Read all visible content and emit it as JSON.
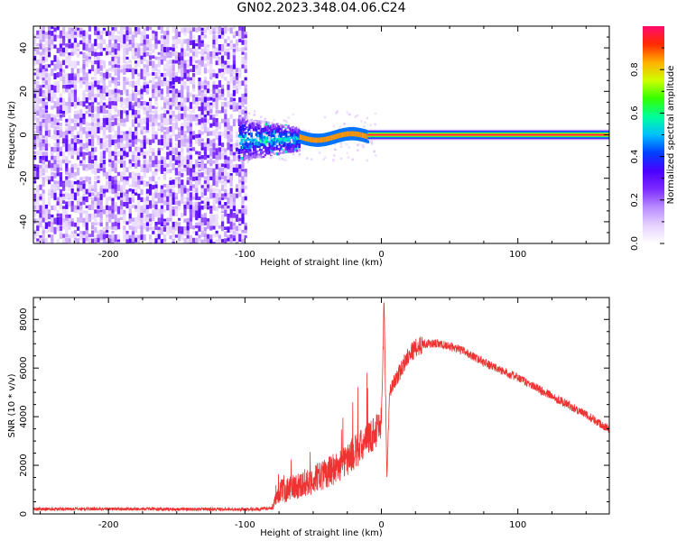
{
  "figure": {
    "title": "GN02.2023.348.04.06.C24"
  },
  "chart_data": [
    {
      "type": "heatmap",
      "panel": "top",
      "xlabel": "Height of straight line (km)",
      "ylabel": "Frequency (Hz)",
      "xlim": [
        -255,
        167
      ],
      "ylim": [
        -50,
        50
      ],
      "x_ticks": [
        -200,
        -100,
        0,
        100
      ],
      "y_ticks": [
        -40,
        -20,
        0,
        20,
        40
      ],
      "colorbar": {
        "label": "Normalized spectral amplitude",
        "range": [
          0,
          1
        ],
        "ticks": [
          0.0,
          0.2,
          0.4,
          0.6,
          0.8
        ],
        "colormap": [
          "#ffffff",
          "#e6d2ff",
          "#b98cff",
          "#7d2bff",
          "#4a00ff",
          "#0040ff",
          "#00bfff",
          "#00ff9a",
          "#33ff00",
          "#ccff00",
          "#ffb000",
          "#ff2a00",
          "#ff0a6e"
        ]
      },
      "regions": [
        {
          "x_range": [
            -255,
            -100
          ],
          "freq_range": [
            -50,
            50
          ],
          "amplitude": 0.15,
          "description_type": "broadband noise"
        },
        {
          "x_range": [
            -105,
            -60
          ],
          "freq_center": -2,
          "freq_spread": 10,
          "amplitude": 0.3
        },
        {
          "x_range": [
            -60,
            -10
          ],
          "freq_center": -1,
          "freq_spread": 3,
          "amplitude": 0.8
        },
        {
          "x_range": [
            -10,
            167
          ],
          "freq_center": 0,
          "freq_spread": 1,
          "amplitude": 1.0
        }
      ]
    },
    {
      "type": "line",
      "panel": "bottom",
      "xlabel": "Height of straight line (km)",
      "ylabel": "SNR (10 * v/v)",
      "xlim": [
        -255,
        167
      ],
      "ylim": [
        0,
        8900
      ],
      "x_ticks": [
        -200,
        -100,
        0,
        100
      ],
      "y_ticks": [
        0,
        2000,
        4000,
        6000,
        8000
      ],
      "color": "#ee3333",
      "series": [
        {
          "x": [
            -255,
            -200,
            -150,
            -100,
            -90,
            -80,
            -75,
            -70,
            -60,
            -50,
            -40,
            -30,
            -20,
            -10,
            -5,
            0,
            2,
            4,
            6,
            10,
            15,
            20,
            30,
            40,
            50,
            60,
            80,
            100,
            120,
            140,
            167
          ],
          "values": [
            200,
            210,
            200,
            190,
            200,
            250,
            900,
            1000,
            1200,
            1400,
            1700,
            2000,
            2500,
            3000,
            3400,
            3800,
            8800,
            1500,
            5000,
            5500,
            6000,
            6600,
            7000,
            7000,
            6900,
            6700,
            6100,
            5600,
            5000,
            4400,
            3500
          ]
        }
      ]
    }
  ]
}
